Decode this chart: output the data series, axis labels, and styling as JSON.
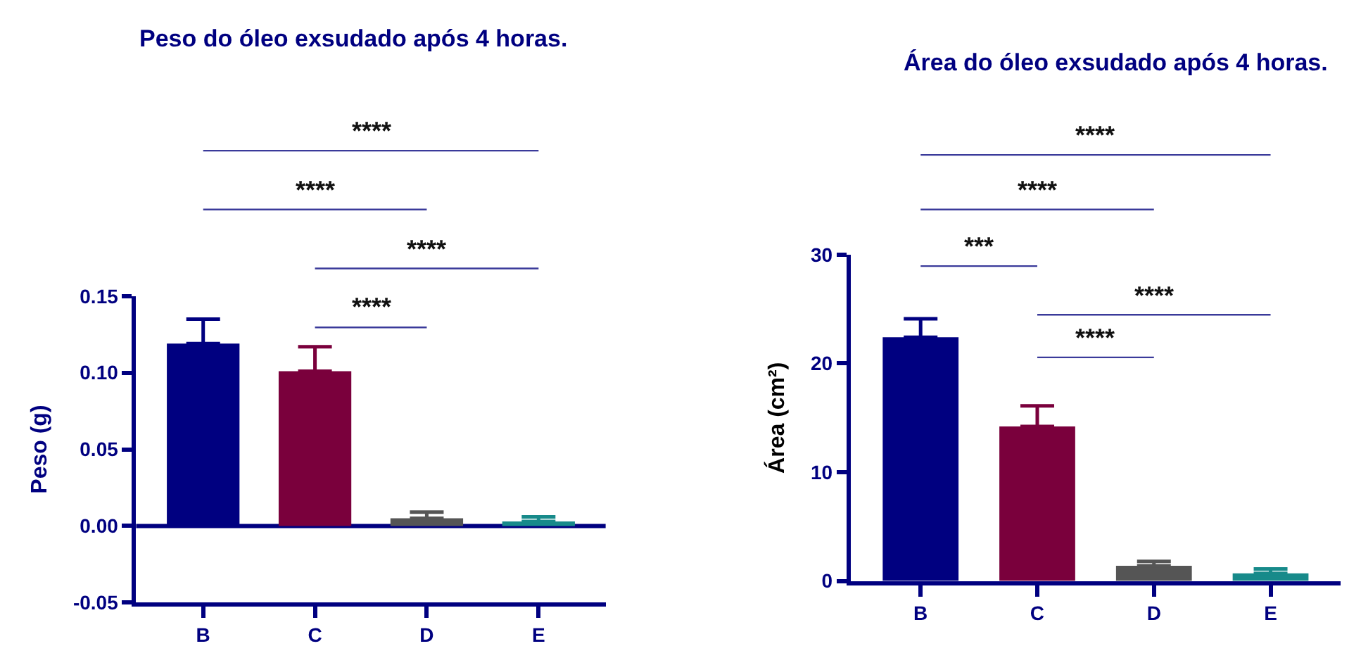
{
  "chart_data": [
    {
      "type": "bar",
      "title": "Peso do óleo exsudado após 4 horas.",
      "ylabel": "Peso (g)",
      "categories": [
        "B",
        "C",
        "D",
        "E"
      ],
      "values": [
        0.119,
        0.101,
        0.005,
        0.003
      ],
      "colors": [
        "#000080",
        "#7a003c",
        "#555555",
        "#178a8a"
      ],
      "errors": [
        [
          0.119,
          0.135
        ],
        [
          0.101,
          0.117
        ],
        [
          0.005,
          0.009
        ],
        [
          0.003,
          0.006
        ]
      ],
      "ylim": [
        -0.05,
        0.15
      ],
      "yticks": [
        {
          "value": -0.05,
          "label": "-0.05"
        },
        {
          "value": 0,
          "label": "0.00"
        },
        {
          "value": 0.05,
          "label": "0.05"
        },
        {
          "value": 0.1,
          "label": "0.10"
        },
        {
          "value": 0.15,
          "label": "0.15"
        }
      ],
      "ref_lines": [
        {
          "axis": "y",
          "value": 0,
          "color": "#000080"
        }
      ],
      "annotations": [
        "****",
        "****",
        "****",
        "****"
      ]
    },
    {
      "type": "bar",
      "title": "Área do óleo exsudado após 4 horas.",
      "ylabel": "Área (cm²)",
      "categories": [
        "B",
        "C",
        "D",
        "E"
      ],
      "values": [
        22.4,
        14.2,
        1.4,
        0.7
      ],
      "colors": [
        "#000080",
        "#7a003c",
        "#555555",
        "#178a8a"
      ],
      "errors": [
        [
          22.4,
          24.1
        ],
        [
          14.2,
          16.1
        ],
        [
          1.4,
          1.8
        ],
        [
          0.7,
          1.1
        ]
      ],
      "ylim": [
        0,
        30
      ],
      "yticks": [
        0,
        10,
        20,
        30
      ],
      "annotations": [
        "****",
        "****",
        "***",
        "****",
        "****"
      ]
    }
  ]
}
